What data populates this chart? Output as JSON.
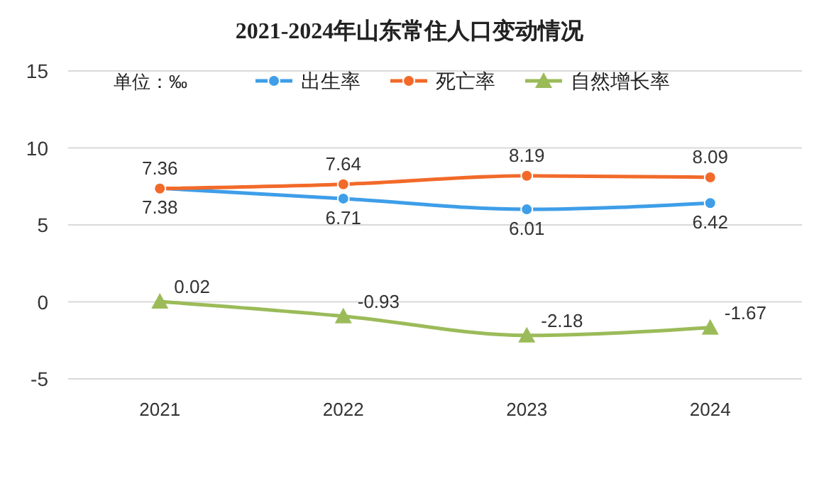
{
  "chart_data": {
    "type": "line",
    "title": "2021-2024年山东常住人口变动情况",
    "annotations": [
      "单位：‰"
    ],
    "categories": [
      "2021",
      "2022",
      "2023",
      "2024"
    ],
    "series": [
      {
        "name": "出生率",
        "color": "#3e9ee8",
        "marker": "circle",
        "values": [
          7.38,
          6.71,
          6.01,
          6.42
        ]
      },
      {
        "name": "死亡率",
        "color": "#f26a2a",
        "marker": "circle",
        "values": [
          7.36,
          7.64,
          8.19,
          8.09
        ]
      },
      {
        "name": "自然增长率",
        "color": "#9bbb59",
        "marker": "triangle",
        "values": [
          0.02,
          -0.93,
          -2.18,
          -1.67
        ]
      }
    ],
    "ylim": [
      -5,
      15
    ],
    "yticks": [
      -5,
      0,
      5,
      10,
      15
    ],
    "grid": "y",
    "legend": "top",
    "data_labels": true
  }
}
